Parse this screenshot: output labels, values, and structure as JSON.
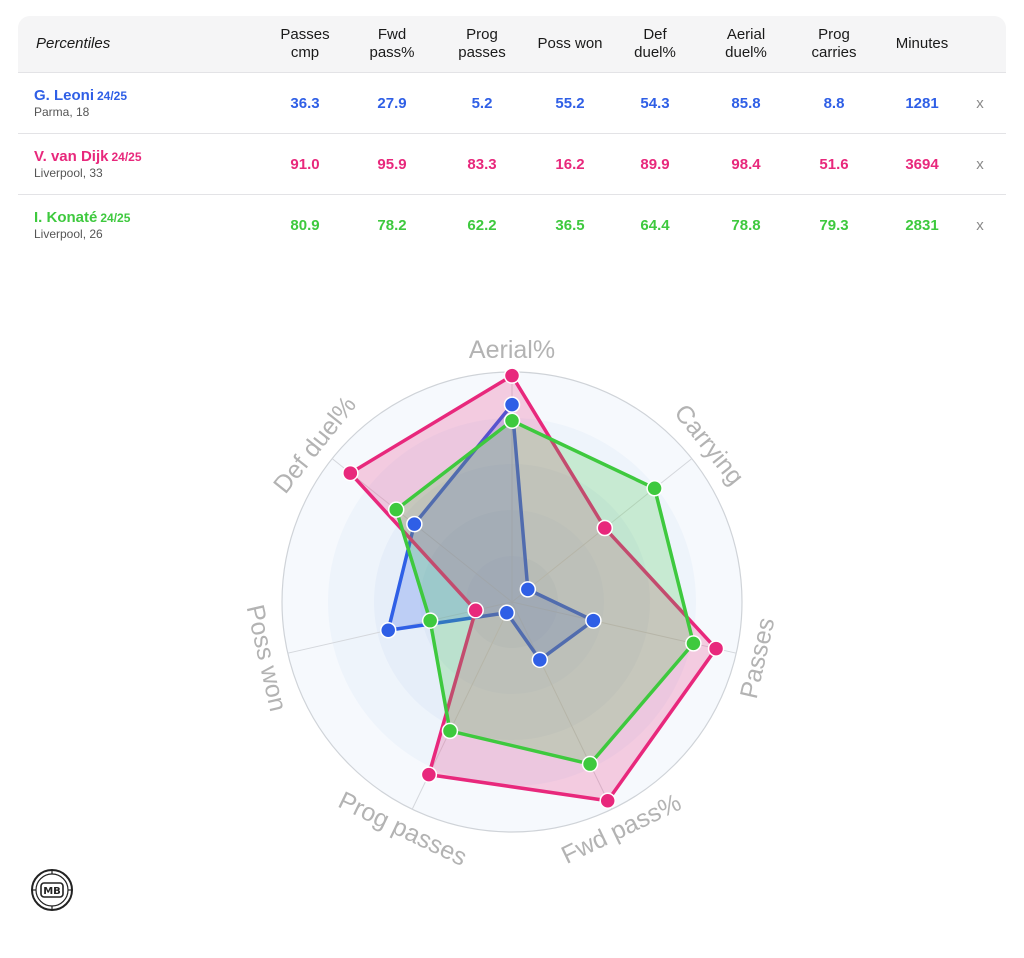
{
  "table": {
    "header": [
      "Percentiles",
      "Passes\ncmp",
      "Fwd\npass%",
      "Prog\npasses",
      "Poss won",
      "Def\nduel%",
      "Aerial\nduel%",
      "Prog\ncarries",
      "Minutes"
    ],
    "rows": [
      {
        "name": "G. Leoni",
        "season": "24/25",
        "info": "Parma, 18",
        "color": "#2f5fe6",
        "values": [
          "36.3",
          "27.9",
          "5.2",
          "55.2",
          "54.3",
          "85.8",
          "8.8",
          "1281"
        ],
        "remove": "x"
      },
      {
        "name": "V. van Dijk",
        "season": "24/25",
        "info": "Liverpool, 33",
        "color": "#e8287c",
        "values": [
          "91.0",
          "95.9",
          "83.3",
          "16.2",
          "89.9",
          "98.4",
          "51.6",
          "3694"
        ],
        "remove": "x"
      },
      {
        "name": "I. Konaté",
        "season": "24/25",
        "info": "Liverpool, 26",
        "color": "#3ec93e",
        "values": [
          "80.9",
          "78.2",
          "62.2",
          "36.5",
          "64.4",
          "78.8",
          "79.3",
          "2831"
        ],
        "remove": "x"
      }
    ]
  },
  "chart_data": {
    "type": "radar",
    "axes": [
      "Aerial%",
      "Carrying",
      "Passes",
      "Fwd pass%",
      "Prog passes",
      "Poss won",
      "Def duel%"
    ],
    "range": [
      0,
      100
    ],
    "series": [
      {
        "name": "G. Leoni",
        "color": "#2f5fe6",
        "values": [
          85.8,
          8.8,
          36.3,
          27.9,
          5.2,
          55.2,
          54.3
        ]
      },
      {
        "name": "V. van Dijk",
        "color": "#e8287c",
        "values": [
          98.4,
          51.6,
          91.0,
          95.9,
          83.3,
          16.2,
          89.9
        ]
      },
      {
        "name": "I. Konaté",
        "color": "#3ec93e",
        "values": [
          78.8,
          79.3,
          80.9,
          78.2,
          62.2,
          36.5,
          64.4
        ]
      }
    ]
  },
  "logo": {
    "text": "MB"
  }
}
